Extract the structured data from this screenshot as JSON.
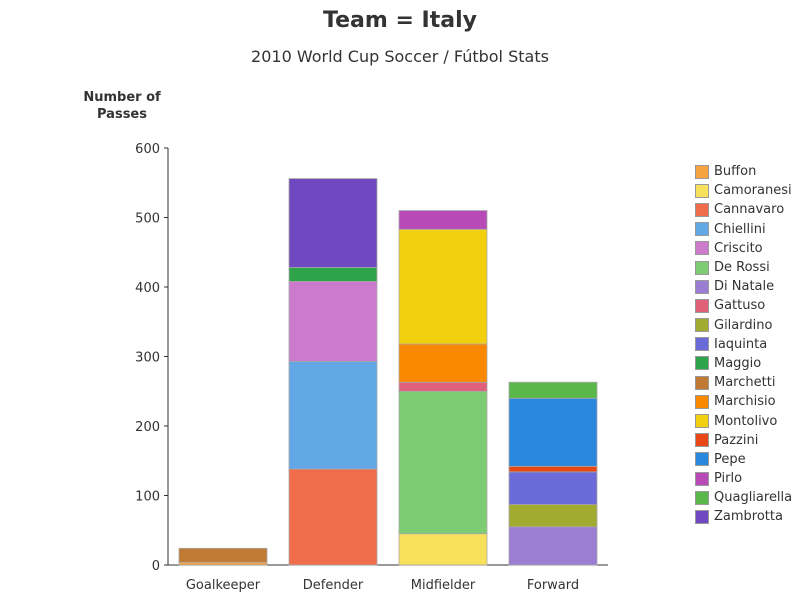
{
  "chart_data": {
    "type": "bar",
    "stacked": true,
    "title": "Team = Italy",
    "subtitle": "2010 World Cup Soccer / Fútbol Stats",
    "ylabel_lines": [
      "Number of",
      "Passes"
    ],
    "xlabel": "",
    "ylim": [
      0,
      600
    ],
    "yticks": [
      0,
      100,
      200,
      300,
      400,
      500,
      600
    ],
    "categories": [
      "Goalkeeper",
      "Defender",
      "Midfielder",
      "Forward"
    ],
    "legend_position": "right",
    "series": [
      {
        "name": "Buffon",
        "color": "#f5a340",
        "values": [
          4,
          0,
          0,
          0
        ]
      },
      {
        "name": "Camoranesi",
        "color": "#f7e05a",
        "values": [
          0,
          0,
          45,
          0
        ]
      },
      {
        "name": "Cannavaro",
        "color": "#f06c4a",
        "values": [
          0,
          138,
          0,
          0
        ]
      },
      {
        "name": "Chiellini",
        "color": "#62a8e6",
        "values": [
          0,
          155,
          0,
          0
        ]
      },
      {
        "name": "Criscito",
        "color": "#cc7acc",
        "values": [
          0,
          115,
          0,
          0
        ]
      },
      {
        "name": "De Rossi",
        "color": "#7dcc74",
        "values": [
          0,
          0,
          205,
          0
        ]
      },
      {
        "name": "Di Natale",
        "color": "#9b7dd4",
        "values": [
          0,
          0,
          0,
          55
        ]
      },
      {
        "name": "Gattuso",
        "color": "#e0607a",
        "values": [
          0,
          0,
          13,
          0
        ]
      },
      {
        "name": "Gilardino",
        "color": "#a0ab30",
        "values": [
          0,
          0,
          0,
          32
        ]
      },
      {
        "name": "Iaquinta",
        "color": "#6a6ad8",
        "values": [
          0,
          0,
          0,
          47
        ]
      },
      {
        "name": "Maggio",
        "color": "#2ea44a",
        "values": [
          0,
          20,
          0,
          0
        ]
      },
      {
        "name": "Marchetti",
        "color": "#c07a34",
        "values": [
          20,
          0,
          0,
          0
        ]
      },
      {
        "name": "Marchisio",
        "color": "#fa8800",
        "values": [
          0,
          0,
          55,
          0
        ]
      },
      {
        "name": "Montolivo",
        "color": "#f2d010",
        "values": [
          0,
          0,
          165,
          0
        ]
      },
      {
        "name": "Pazzini",
        "color": "#e84818",
        "values": [
          0,
          0,
          0,
          8
        ]
      },
      {
        "name": "Pepe",
        "color": "#2a88dc",
        "values": [
          0,
          0,
          0,
          98
        ]
      },
      {
        "name": "Pirlo",
        "color": "#b84ab8",
        "values": [
          0,
          0,
          27,
          0
        ]
      },
      {
        "name": "Quagliarella",
        "color": "#5ab84a",
        "values": [
          0,
          0,
          0,
          23
        ]
      },
      {
        "name": "Zambrotta",
        "color": "#7048c0",
        "values": [
          0,
          128,
          0,
          0
        ]
      }
    ]
  }
}
